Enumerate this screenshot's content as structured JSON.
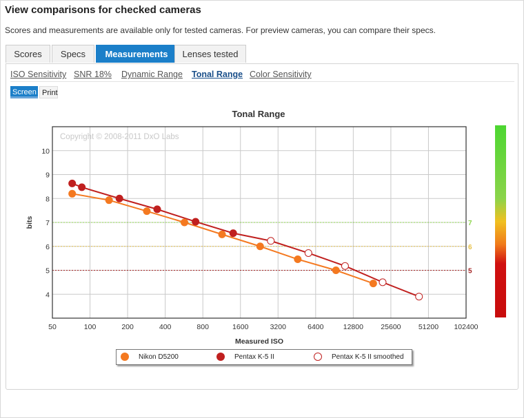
{
  "page": {
    "heading": "View comparisons for checked cameras",
    "subheading": "Scores and measurements are available only for tested cameras. For preview cameras, you can compare their specs."
  },
  "tabs": [
    {
      "label": "Scores",
      "active": false
    },
    {
      "label": "Specs",
      "active": false
    },
    {
      "label": "Measurements",
      "active": true
    },
    {
      "label": "Lenses tested",
      "active": false
    }
  ],
  "subtabs": [
    {
      "label": "ISO Sensitivity",
      "active": false
    },
    {
      "label": "SNR 18%",
      "active": false
    },
    {
      "label": "Dynamic Range",
      "active": false
    },
    {
      "label": "Tonal Range",
      "active": true
    },
    {
      "label": "Color Sensitivity",
      "active": false
    }
  ],
  "view_toggle": {
    "screen": "Screen",
    "print": "Print"
  },
  "colors": {
    "accent": "#1b7fc9",
    "nikon": "#f47920",
    "pentax": "#c0201f",
    "ref7": "#8bd44a",
    "ref6": "#e7c24a",
    "ref5": "#a32020"
  },
  "chart_data": {
    "type": "line",
    "title": "Tonal Range",
    "xlabel": "Measured ISO",
    "ylabel": "bits",
    "x_scale": "log2",
    "x_ticks": [
      "50",
      "100",
      "200",
      "400",
      "800",
      "1600",
      "3200",
      "6400",
      "12800",
      "25600",
      "51200",
      "102400"
    ],
    "y_ticks": [
      "4",
      "5",
      "6",
      "7",
      "8",
      "9",
      "10"
    ],
    "xlim": [
      50,
      102400
    ],
    "ylim": [
      3,
      11
    ],
    "grid": true,
    "watermark": "Copyright © 2008-2011 DxO Labs",
    "reference_lines": [
      {
        "y": 7,
        "label": "7",
        "color": "#8bd44a"
      },
      {
        "y": 6,
        "label": "6",
        "color": "#e7c24a"
      },
      {
        "y": 5,
        "label": "5",
        "color": "#a32020"
      }
    ],
    "series": [
      {
        "name": "Nikon D5200",
        "color": "#f47920",
        "marker": "filled",
        "x": [
          72,
          142,
          285,
          570,
          1140,
          2300,
          4600,
          9300,
          18500
        ],
        "y": [
          8.2,
          7.93,
          7.47,
          7.0,
          6.5,
          6.0,
          5.46,
          5.0,
          4.45
        ]
      },
      {
        "name": "Pentax K-5 II",
        "color": "#c0201f",
        "marker": "filled",
        "x": [
          72,
          86,
          172,
          345,
          700,
          1400
        ],
        "y": [
          8.63,
          8.47,
          8.0,
          7.55,
          7.03,
          6.55
        ]
      },
      {
        "name": "Pentax K-5 II smoothed",
        "color": "#c0201f",
        "marker": "hollow",
        "x": [
          2800,
          5600,
          11000,
          22000,
          43000
        ],
        "y": [
          6.23,
          5.72,
          5.18,
          4.5,
          3.9
        ]
      }
    ],
    "legend_position": "bottom-center"
  }
}
